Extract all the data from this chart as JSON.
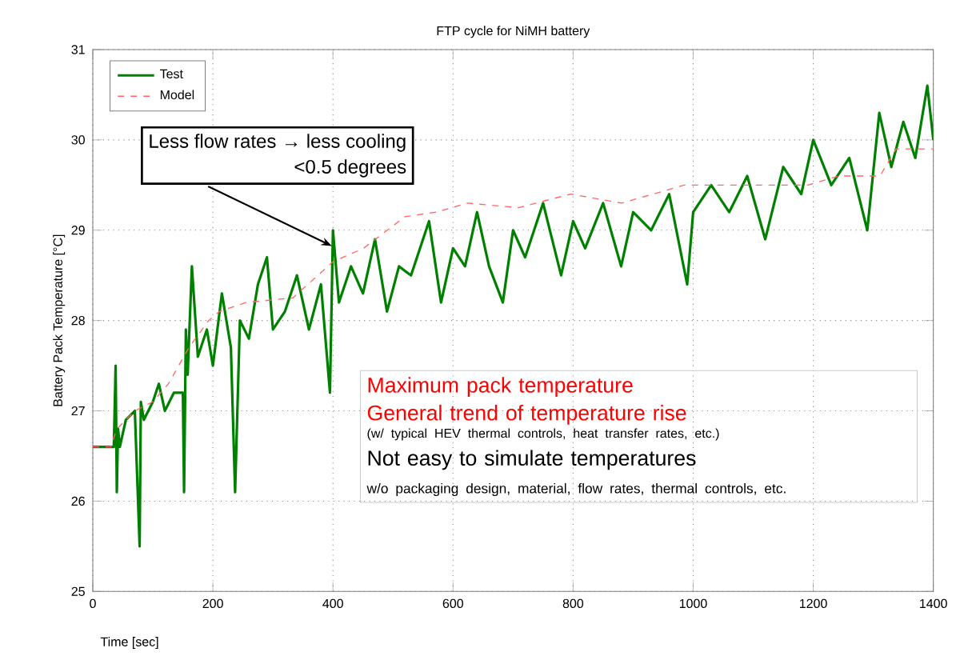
{
  "chart_data": {
    "type": "line",
    "title": "FTP cycle for NiMH battery",
    "xlabel": "Time [sec]",
    "ylabel": "Battery Pack Temperature [°C]",
    "xlim": [
      0,
      1400
    ],
    "ylim": [
      25,
      31
    ],
    "xticks": [
      0,
      200,
      400,
      600,
      800,
      1000,
      1200,
      1400
    ],
    "yticks": [
      25,
      26,
      27,
      28,
      29,
      30,
      31
    ],
    "grid": true,
    "legend": "top left",
    "series": [
      {
        "name": "Test",
        "color": "#008000",
        "line_style": "solid",
        "x": [
          0,
          35,
          38,
          40,
          42,
          45,
          55,
          70,
          78,
          80,
          85,
          100,
          110,
          120,
          135,
          150,
          152,
          155,
          158,
          165,
          175,
          190,
          200,
          215,
          230,
          237,
          245,
          260,
          275,
          290,
          300,
          320,
          340,
          360,
          380,
          395,
          400,
          410,
          430,
          450,
          470,
          490,
          510,
          530,
          560,
          580,
          600,
          620,
          640,
          660,
          683,
          700,
          720,
          750,
          780,
          800,
          820,
          850,
          880,
          900,
          930,
          960,
          990,
          1000,
          1030,
          1060,
          1090,
          1120,
          1150,
          1180,
          1200,
          1230,
          1260,
          1290,
          1310,
          1330,
          1350,
          1370,
          1390,
          1400
        ],
        "values": [
          26.6,
          26.6,
          27.5,
          26.1,
          26.8,
          26.6,
          26.9,
          27.0,
          25.5,
          27.1,
          26.9,
          27.1,
          27.3,
          27.0,
          27.2,
          27.2,
          26.1,
          27.9,
          27.4,
          28.6,
          27.6,
          27.9,
          27.5,
          28.3,
          27.7,
          26.1,
          28.0,
          27.8,
          28.4,
          28.7,
          27.9,
          28.1,
          28.5,
          27.9,
          28.4,
          27.2,
          29.0,
          28.2,
          28.6,
          28.3,
          28.9,
          28.1,
          28.6,
          28.5,
          29.1,
          28.2,
          28.8,
          28.6,
          29.2,
          28.6,
          28.2,
          29.0,
          28.7,
          29.3,
          28.5,
          29.1,
          28.8,
          29.3,
          28.6,
          29.2,
          29.0,
          29.4,
          28.4,
          29.2,
          29.5,
          29.2,
          29.6,
          28.9,
          29.7,
          29.4,
          30.0,
          29.5,
          29.8,
          29.0,
          30.3,
          29.7,
          30.2,
          29.8,
          30.6,
          30.0
        ]
      },
      {
        "name": "Model",
        "color": "#ff6666",
        "line_style": "dashed",
        "x": [
          0,
          30,
          40,
          70,
          100,
          126,
          160,
          193,
          211,
          255,
          333,
          400,
          451,
          520,
          572,
          624,
          709,
          796,
          881,
          985,
          1095,
          1191,
          1242,
          1311,
          1338,
          1389,
          1400
        ],
        "values": [
          26.6,
          26.6,
          26.8,
          27.0,
          27.1,
          27.3,
          27.7,
          28.0,
          28.1,
          28.2,
          28.25,
          28.65,
          28.8,
          29.15,
          29.2,
          29.3,
          29.25,
          29.4,
          29.3,
          29.5,
          29.5,
          29.5,
          29.6,
          29.6,
          29.9,
          29.9,
          29.9
        ]
      }
    ],
    "annotations": [
      "Less flow rates → less cooling",
      "<0.5 degrees",
      "Maximum pack temperature",
      "General trend of temperature rise",
      "(w/ typical HEV thermal controls, heat transfer rates, etc.)",
      "Not easy to simulate temperatures",
      "w/o packaging design, material, flow rates, thermal controls, etc."
    ]
  }
}
